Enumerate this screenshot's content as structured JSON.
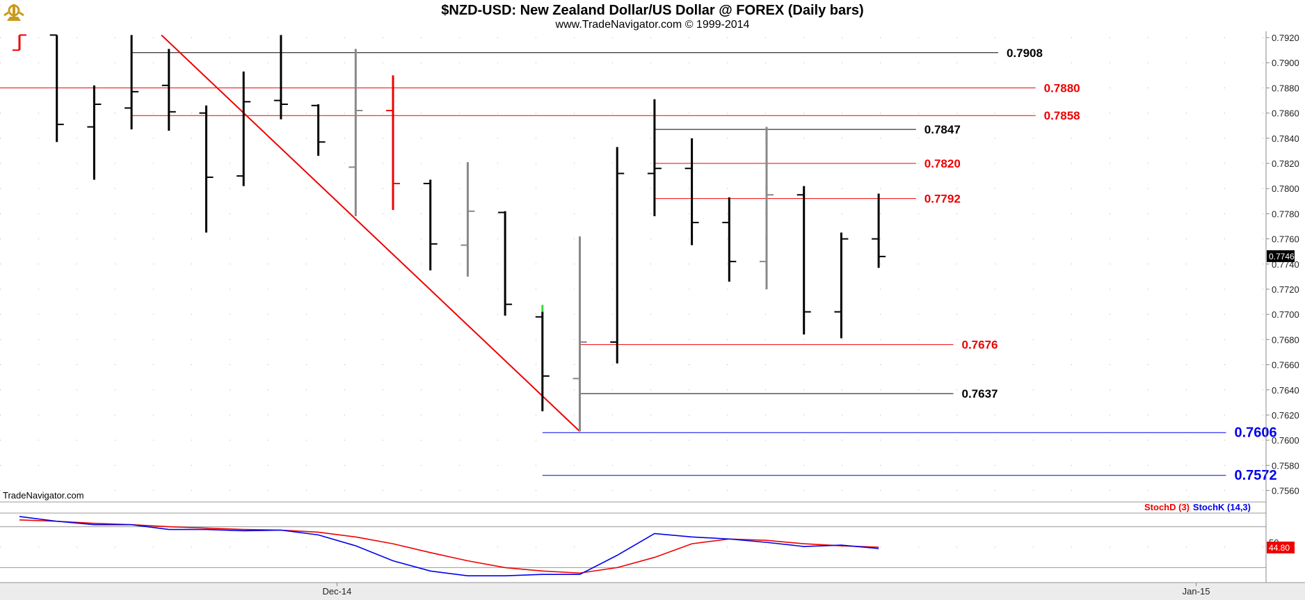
{
  "chart_data": [
    {
      "type": "ohlc",
      "title": "$NZD-USD:  New Zealand Dollar/US Dollar @ FOREX  (Daily bars)",
      "subtitle": "www.TradeNavigator.com © 1999-2014",
      "watermark": "TradeNavigator.com",
      "ylim": [
        0.7552,
        0.7925
      ],
      "yticks": [
        "0.7560",
        "0.7580",
        "0.7600",
        "0.7620",
        "0.7640",
        "0.7660",
        "0.7680",
        "0.7700",
        "0.7720",
        "0.7740",
        "0.7760",
        "0.7780",
        "0.7800",
        "0.7820",
        "0.7840",
        "0.7860",
        "0.7880",
        "0.7900",
        "0.7920"
      ],
      "xtick_labels": [
        {
          "label": "Dec-14",
          "bar": 8.5
        },
        {
          "label": "Jan-15",
          "bar": 31.5
        }
      ],
      "last_price": "0.7746",
      "bars": [
        {
          "o": 0.791,
          "h": 0.7922,
          "l": 0.791,
          "c": 0.7922,
          "color": "red"
        },
        {
          "o": 0.7922,
          "h": 0.7922,
          "l": 0.7837,
          "c": 0.7851,
          "color": "black"
        },
        {
          "o": 0.7849,
          "h": 0.7882,
          "l": 0.7807,
          "c": 0.7867,
          "color": "black"
        },
        {
          "o": 0.7864,
          "h": 0.7922,
          "l": 0.7847,
          "c": 0.7877,
          "color": "black"
        },
        {
          "o": 0.7882,
          "h": 0.7911,
          "l": 0.7846,
          "c": 0.7861,
          "color": "black"
        },
        {
          "o": 0.786,
          "h": 0.7866,
          "l": 0.7765,
          "c": 0.7809,
          "color": "black"
        },
        {
          "o": 0.781,
          "h": 0.7893,
          "l": 0.7802,
          "c": 0.7869,
          "color": "black"
        },
        {
          "o": 0.787,
          "h": 0.7922,
          "l": 0.7855,
          "c": 0.7867,
          "color": "black"
        },
        {
          "o": 0.7866,
          "h": 0.7867,
          "l": 0.7826,
          "c": 0.7837,
          "color": "black"
        },
        {
          "o": 0.7817,
          "h": 0.7911,
          "l": 0.7778,
          "c": 0.7862,
          "color": "gray"
        },
        {
          "o": 0.7862,
          "h": 0.789,
          "l": 0.7783,
          "c": 0.7804,
          "color": "red"
        },
        {
          "o": 0.7804,
          "h": 0.7807,
          "l": 0.7735,
          "c": 0.7756,
          "color": "black"
        },
        {
          "o": 0.7755,
          "h": 0.7821,
          "l": 0.773,
          "c": 0.7782,
          "color": "gray"
        },
        {
          "o": 0.7781,
          "h": 0.7782,
          "l": 0.7699,
          "c": 0.7708,
          "color": "black"
        },
        {
          "o": 0.7698,
          "h": 0.7702,
          "l": 0.7623,
          "c": 0.7651,
          "color": "black"
        },
        {
          "o": 0.7649,
          "h": 0.7762,
          "l": 0.7607,
          "c": 0.7678,
          "color": "gray"
        },
        {
          "o": 0.7678,
          "h": 0.7833,
          "l": 0.7661,
          "c": 0.7812,
          "color": "black"
        },
        {
          "o": 0.7812,
          "h": 0.7871,
          "l": 0.7778,
          "c": 0.7816,
          "color": "black"
        },
        {
          "o": 0.7816,
          "h": 0.784,
          "l": 0.7755,
          "c": 0.7773,
          "color": "black"
        },
        {
          "o": 0.7773,
          "h": 0.7793,
          "l": 0.7726,
          "c": 0.7742,
          "color": "black"
        },
        {
          "o": 0.7742,
          "h": 0.7849,
          "l": 0.772,
          "c": 0.7795,
          "color": "gray"
        },
        {
          "o": 0.7795,
          "h": 0.7802,
          "l": 0.7684,
          "c": 0.7702,
          "color": "black"
        },
        {
          "o": 0.7702,
          "h": 0.7765,
          "l": 0.7681,
          "c": 0.776,
          "color": "black"
        },
        {
          "o": 0.776,
          "h": 0.7796,
          "l": 0.7737,
          "c": 0.7746,
          "color": "black"
        }
      ],
      "levels": [
        {
          "value": 0.7908,
          "label": "0.7908",
          "color": "#000000",
          "x0bar": 3,
          "x1bar": 26.2,
          "size": "normal"
        },
        {
          "value": 0.788,
          "label": "0.7880",
          "color": "#ee0000",
          "x0bar": -1,
          "x1bar": 27.2,
          "size": "normal"
        },
        {
          "value": 0.7858,
          "label": "0.7858",
          "color": "#ee0000",
          "x0bar": 3,
          "x1bar": 27.2,
          "size": "normal"
        },
        {
          "value": 0.7847,
          "label": "0.7847",
          "color": "#000000",
          "x0bar": 17,
          "x1bar": 24,
          "size": "normal"
        },
        {
          "value": 0.782,
          "label": "0.7820",
          "color": "#ee0000",
          "x0bar": 17,
          "x1bar": 24,
          "size": "normal"
        },
        {
          "value": 0.7792,
          "label": "0.7792",
          "color": "#ee0000",
          "x0bar": 17,
          "x1bar": 24,
          "size": "normal"
        },
        {
          "value": 0.7676,
          "label": "0.7676",
          "color": "#ee0000",
          "x0bar": 15,
          "x1bar": 25,
          "size": "normal"
        },
        {
          "value": 0.7637,
          "label": "0.7637",
          "color": "#000000",
          "x0bar": 15,
          "x1bar": 25,
          "size": "normal"
        },
        {
          "value": 0.7606,
          "label": "0.7606",
          "color": "#0000ee",
          "x0bar": 14,
          "x1bar": 32.3,
          "size": "large"
        },
        {
          "value": 0.7572,
          "label": "0.7572",
          "color": "#0000ee",
          "x0bar": 14,
          "x1bar": 32.3,
          "size": "large"
        }
      ],
      "trendline": {
        "from": {
          "bar": 3.8,
          "value": 0.7922
        },
        "to": {
          "bar": 15,
          "value": 0.7607
        },
        "color": "#ee0000"
      }
    },
    {
      "type": "line",
      "series": [
        {
          "name": "StochD (3)",
          "color": "#ee0000",
          "values": [
            90,
            88,
            85,
            83,
            80,
            78,
            76,
            75,
            72,
            65,
            55,
            42,
            30,
            20,
            15,
            12,
            20,
            35,
            55,
            62,
            60,
            55,
            52,
            50
          ]
        },
        {
          "name": "StochK (14,3)",
          "color": "#0000ee",
          "values": [
            95,
            88,
            83,
            83,
            76,
            76,
            74,
            75,
            68,
            52,
            30,
            15,
            8,
            8,
            10,
            10,
            38,
            70,
            65,
            62,
            57,
            51,
            53,
            48
          ]
        }
      ],
      "ylim": [
        0,
        100
      ],
      "guide_lines": [
        80,
        20
      ],
      "tick_label": "50",
      "last_value": "44.80"
    }
  ],
  "colors": {
    "red": "#ee0000",
    "black": "#000000",
    "gray": "#888888",
    "blue": "#0000ee",
    "grid": "#b0b0b0"
  }
}
